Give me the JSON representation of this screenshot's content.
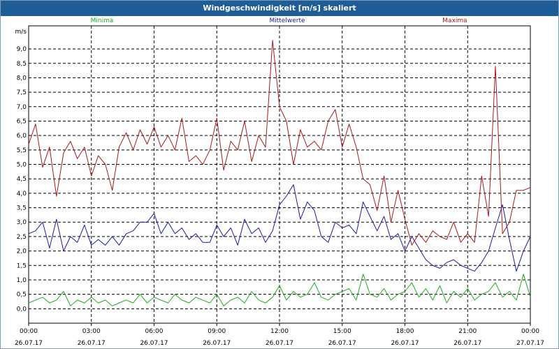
{
  "window": {
    "title": "Windgeschwindigkeit [m/s] skaliert"
  },
  "chart_data": {
    "type": "line",
    "title": "Windgeschwindigkeit [m/s] skaliert",
    "ylabel": "m/s",
    "ylim": [
      -0.5,
      9.8
    ],
    "yticks": [
      "0,0",
      "0,5",
      "1,0",
      "1,5",
      "2,0",
      "2,5",
      "3,0",
      "3,5",
      "4,0",
      "4,5",
      "5,0",
      "5,5",
      "6,0",
      "6,5",
      "7,0",
      "7,5",
      "8,0",
      "8,5",
      "9,0"
    ],
    "ytick_values": [
      0,
      0.5,
      1,
      1.5,
      2,
      2.5,
      3,
      3.5,
      4,
      4.5,
      5,
      5.5,
      6,
      6.5,
      7,
      7.5,
      8,
      8.5,
      9
    ],
    "xlim_hours": [
      0,
      24
    ],
    "xtick_hours": [
      0,
      3,
      6,
      9,
      12,
      15,
      18,
      21,
      24
    ],
    "xticks": [
      {
        "time": "00:00",
        "date": "26.07.17"
      },
      {
        "time": "03:00",
        "date": "26.07.17"
      },
      {
        "time": "06:00",
        "date": "26.07.17"
      },
      {
        "time": "09:00",
        "date": "26.07.17"
      },
      {
        "time": "12:00",
        "date": "26.07.17"
      },
      {
        "time": "15:00",
        "date": "26.07.17"
      },
      {
        "time": "18:00",
        "date": "26.07.17"
      },
      {
        "time": "21:00",
        "date": "26.07.17"
      },
      {
        "time": "00:00",
        "date": "27.07.17"
      }
    ],
    "grid": true,
    "legend_placement": "top",
    "series": [
      {
        "name": "Minima",
        "color": "#22aa22",
        "x": [
          0,
          0.33,
          0.67,
          1,
          1.33,
          1.67,
          2,
          2.33,
          2.67,
          3,
          3.33,
          3.67,
          4,
          4.33,
          4.67,
          5,
          5.33,
          5.67,
          6,
          6.33,
          6.67,
          7,
          7.33,
          7.67,
          8,
          8.33,
          8.67,
          9,
          9.33,
          9.67,
          10,
          10.33,
          10.67,
          11,
          11.33,
          11.67,
          12,
          12.33,
          12.67,
          13,
          13.33,
          13.67,
          14,
          14.33,
          14.67,
          15,
          15.33,
          15.67,
          16,
          16.33,
          16.67,
          17,
          17.33,
          17.67,
          18,
          18.33,
          18.67,
          19,
          19.33,
          19.67,
          20,
          20.33,
          20.67,
          21,
          21.33,
          21.67,
          22,
          22.33,
          22.67,
          23,
          23.33,
          23.67,
          24
        ],
        "values": [
          0.2,
          0.3,
          0.4,
          0.2,
          0.3,
          0.6,
          0.1,
          0.3,
          0.2,
          0.4,
          0.2,
          0.3,
          0.1,
          0.2,
          0.3,
          0.2,
          0.5,
          0.2,
          0.4,
          0.3,
          0.2,
          0.5,
          0.3,
          0.2,
          0.4,
          0.3,
          0.2,
          0.5,
          0.1,
          0.3,
          0.4,
          0.2,
          0.6,
          0.3,
          0.2,
          0.4,
          0.8,
          0.3,
          0.6,
          0.4,
          0.5,
          0.9,
          0.4,
          0.3,
          0.5,
          0.6,
          0.7,
          0.3,
          1.2,
          0.5,
          0.4,
          0.7,
          0.3,
          0.5,
          0.6,
          0.9,
          0.4,
          0.7,
          0.3,
          0.8,
          0.2,
          0.6,
          0.4,
          0.7,
          0.3,
          0.5,
          0.6,
          0.9,
          0.4,
          0.6,
          0.3,
          1.2,
          0.4
        ]
      },
      {
        "name": "Mittelwerte",
        "color": "#1a1aa8",
        "x": [
          0,
          0.33,
          0.67,
          1,
          1.33,
          1.67,
          2,
          2.33,
          2.67,
          3,
          3.33,
          3.67,
          4,
          4.33,
          4.67,
          5,
          5.33,
          5.67,
          6,
          6.33,
          6.67,
          7,
          7.33,
          7.67,
          8,
          8.33,
          8.67,
          9,
          9.33,
          9.67,
          10,
          10.33,
          10.67,
          11,
          11.33,
          11.67,
          12,
          12.33,
          12.67,
          13,
          13.33,
          13.67,
          14,
          14.33,
          14.67,
          15,
          15.33,
          15.67,
          16,
          16.33,
          16.67,
          17,
          17.33,
          17.67,
          18,
          18.33,
          18.67,
          19,
          19.33,
          19.67,
          20,
          20.33,
          20.67,
          21,
          21.33,
          21.67,
          22,
          22.33,
          22.67,
          23,
          23.33,
          23.67,
          24
        ],
        "values": [
          2.6,
          2.7,
          3.0,
          2.1,
          3.1,
          2.0,
          2.5,
          2.3,
          2.9,
          2.2,
          2.4,
          2.2,
          2.5,
          2.2,
          2.6,
          2.7,
          3.0,
          3.0,
          3.3,
          2.6,
          3.0,
          2.6,
          2.8,
          2.4,
          2.6,
          2.3,
          2.3,
          2.9,
          2.5,
          2.8,
          2.2,
          3.1,
          2.6,
          2.8,
          2.3,
          2.7,
          3.6,
          3.9,
          4.3,
          3.1,
          3.7,
          3.4,
          2.5,
          2.3,
          3.0,
          2.8,
          2.9,
          2.6,
          3.7,
          3.2,
          2.7,
          3.2,
          2.4,
          2.6,
          2.0,
          2.5,
          2.1,
          1.7,
          1.5,
          1.4,
          1.6,
          1.7,
          1.5,
          1.4,
          1.3,
          1.6,
          2.0,
          2.8,
          3.6,
          2.4,
          1.3,
          2.0,
          2.5
        ]
      },
      {
        "name": "Maxima",
        "color": "#a81818",
        "x": [
          0,
          0.33,
          0.67,
          1,
          1.33,
          1.67,
          2,
          2.33,
          2.67,
          3,
          3.33,
          3.67,
          4,
          4.33,
          4.67,
          5,
          5.33,
          5.67,
          6,
          6.33,
          6.67,
          7,
          7.33,
          7.67,
          8,
          8.33,
          8.67,
          9,
          9.33,
          9.67,
          10,
          10.33,
          10.67,
          11,
          11.33,
          11.67,
          12,
          12.33,
          12.67,
          13,
          13.33,
          13.67,
          14,
          14.33,
          14.67,
          15,
          15.33,
          15.67,
          16,
          16.33,
          16.67,
          17,
          17.33,
          17.67,
          18,
          18.33,
          18.67,
          19,
          19.33,
          19.67,
          20,
          20.33,
          20.67,
          21,
          21.33,
          21.67,
          22,
          22.33,
          22.67,
          23,
          23.33,
          23.67,
          24
        ],
        "values": [
          5.7,
          6.4,
          4.9,
          5.6,
          3.9,
          5.4,
          5.8,
          5.2,
          5.6,
          4.6,
          5.3,
          5.0,
          4.1,
          5.6,
          6.1,
          5.5,
          6.2,
          5.7,
          6.3,
          5.6,
          6.0,
          5.5,
          6.6,
          5.1,
          5.3,
          5.0,
          5.5,
          6.6,
          4.8,
          5.8,
          5.5,
          6.5,
          5.1,
          6.0,
          5.6,
          9.3,
          7.0,
          6.5,
          5.0,
          6.2,
          5.6,
          5.8,
          5.5,
          6.5,
          6.9,
          5.6,
          6.4,
          5.6,
          4.5,
          4.3,
          3.4,
          4.6,
          3.0,
          4.1,
          3.1,
          2.2,
          2.6,
          2.3,
          2.7,
          2.5,
          2.4,
          3.0,
          2.3,
          2.6,
          2.3,
          4.6,
          3.2,
          8.4,
          2.6,
          3.0,
          4.1,
          4.1,
          4.2
        ]
      }
    ]
  }
}
